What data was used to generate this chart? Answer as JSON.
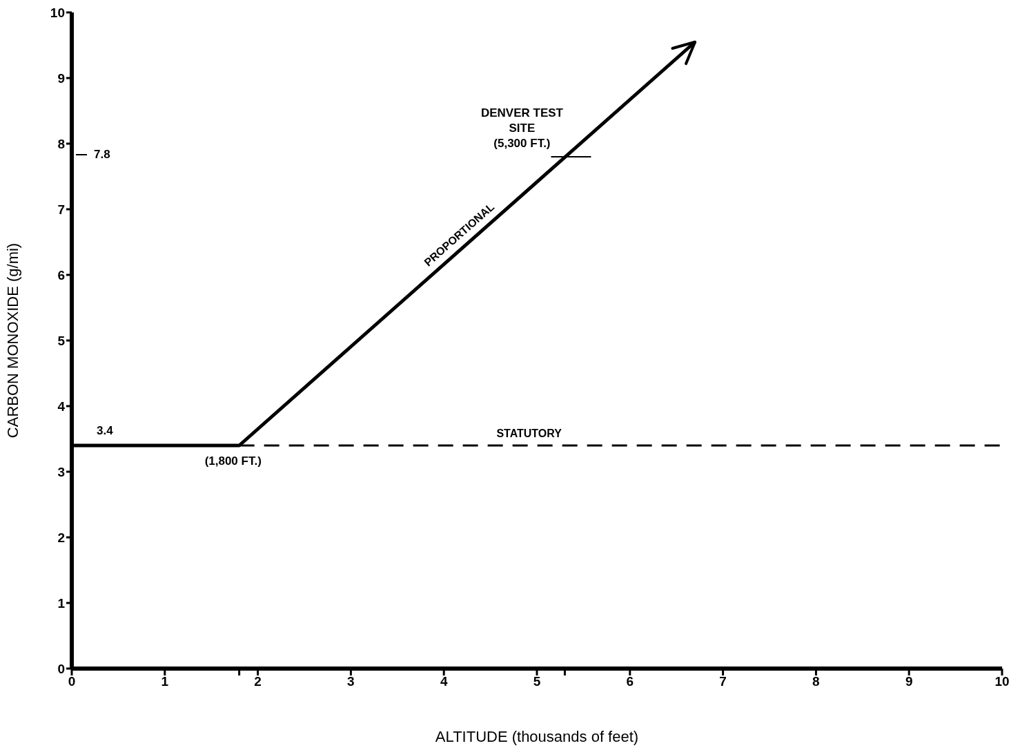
{
  "chart_data": {
    "type": "line",
    "xlabel": "ALTITUDE (thousands of feet)",
    "ylabel": "CARBON MONOXIDE (g/mi)",
    "xlim": [
      0,
      10
    ],
    "ylim": [
      0,
      10
    ],
    "xticks": [
      0,
      1,
      {
        "value": 1.8,
        "label": null
      },
      2,
      3,
      4,
      5,
      {
        "value": 5.3,
        "label": null
      },
      6,
      7,
      8,
      9,
      10
    ],
    "yticks": [
      0,
      1,
      2,
      3,
      4,
      5,
      6,
      7,
      8,
      9,
      10
    ],
    "marker": "none",
    "series": [
      {
        "name": "PROPORTIONAL",
        "color": "#000000",
        "x": [
          0,
          1.8,
          6.7
        ],
        "values": [
          3.4,
          3.4,
          9.55
        ],
        "line_style": "solid"
      },
      {
        "name": "STATUTORY",
        "color": "#000000",
        "x": [
          1.8,
          10
        ],
        "values": [
          3.4,
          3.4
        ],
        "line_style": "dashed"
      }
    ],
    "annotations": [
      {
        "text": "3.4",
        "x": 0,
        "y": 3.4
      },
      "7.8",
      {
        "text": "(1,800 FT.)",
        "x": 1.8,
        "y": 3.4
      },
      {
        "text": "DENVER TEST\nSITE\n(5,300 FT.)",
        "x": 5.3,
        "y": 7.8
      }
    ]
  }
}
